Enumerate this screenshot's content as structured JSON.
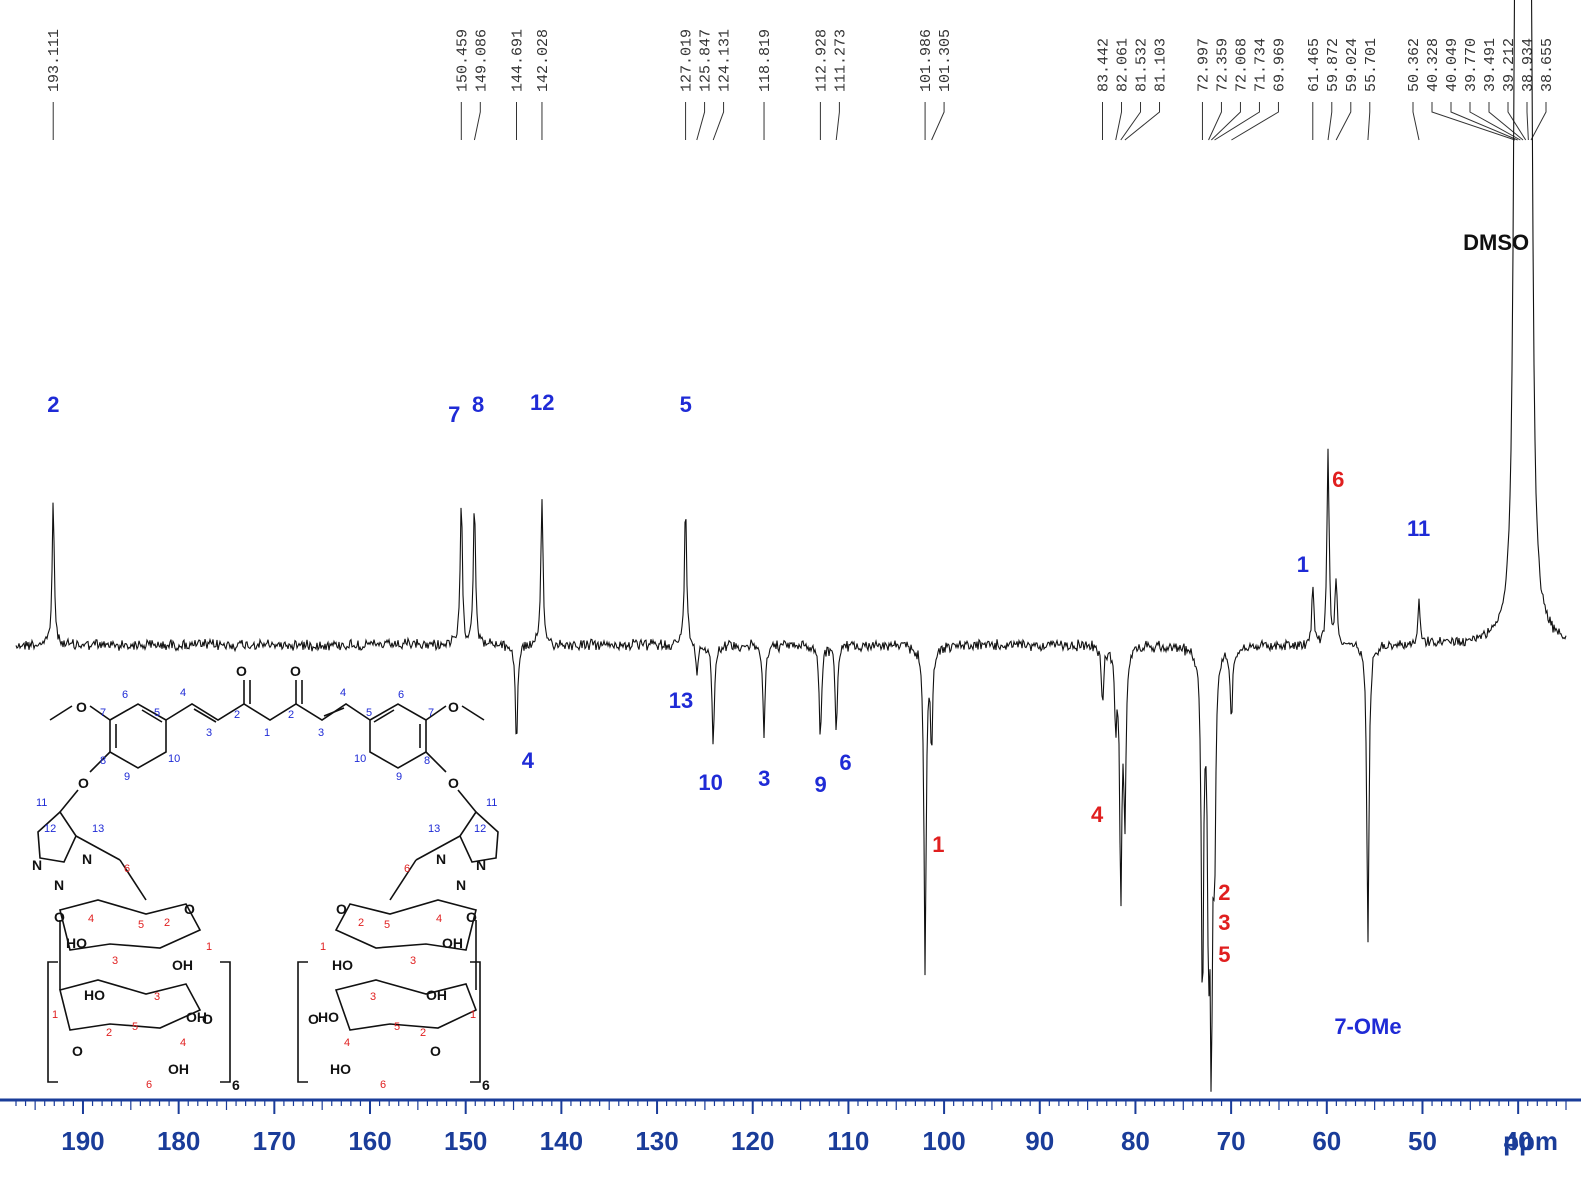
{
  "chart_data": {
    "type": "line",
    "title": "",
    "xlabel": "ppm",
    "ylabel": "",
    "xlim": [
      197,
      35
    ],
    "x_ticks": [
      190,
      180,
      170,
      160,
      150,
      140,
      130,
      120,
      110,
      100,
      90,
      80,
      70,
      60,
      50,
      40
    ],
    "x_tick_labels": [
      "190",
      "180",
      "170",
      "160",
      "150",
      "140",
      "130",
      "120",
      "110",
      "100",
      "90",
      "80",
      "70",
      "60",
      "50",
      "40"
    ],
    "axis_unit_label": "ppm",
    "peak_list": [
      "193.111",
      "150.459",
      "149.086",
      "144.691",
      "142.028",
      "127.019",
      "125.847",
      "124.131",
      "118.819",
      "112.928",
      "111.273",
      "101.986",
      "101.305",
      "83.442",
      "82.061",
      "81.532",
      "81.103",
      "72.997",
      "72.359",
      "72.068",
      "71.734",
      "69.969",
      "61.465",
      "59.872",
      "59.024",
      "55.701",
      "50.362",
      "40.328",
      "40.049",
      "39.770",
      "39.491",
      "39.212",
      "38.934",
      "38.655"
    ],
    "peaks": [
      {
        "ppm": 193.111,
        "intensity": 0.33
      },
      {
        "ppm": 150.459,
        "intensity": 0.33
      },
      {
        "ppm": 149.086,
        "intensity": 0.34
      },
      {
        "ppm": 144.691,
        "intensity": -0.21
      },
      {
        "ppm": 142.028,
        "intensity": 0.33
      },
      {
        "ppm": 127.019,
        "intensity": 0.33
      },
      {
        "ppm": 125.847,
        "intensity": -0.06
      },
      {
        "ppm": 124.131,
        "intensity": -0.21
      },
      {
        "ppm": 118.819,
        "intensity": -0.19
      },
      {
        "ppm": 112.928,
        "intensity": -0.2
      },
      {
        "ppm": 111.273,
        "intensity": -0.18
      },
      {
        "ppm": 101.986,
        "intensity": -0.67
      },
      {
        "ppm": 101.305,
        "intensity": -0.2
      },
      {
        "ppm": 83.442,
        "intensity": -0.12
      },
      {
        "ppm": 82.061,
        "intensity": -0.15
      },
      {
        "ppm": 81.532,
        "intensity": -0.5
      },
      {
        "ppm": 81.103,
        "intensity": -0.35
      },
      {
        "ppm": 72.997,
        "intensity": -0.73
      },
      {
        "ppm": 72.359,
        "intensity": -0.55
      },
      {
        "ppm": 72.068,
        "intensity": -0.78
      },
      {
        "ppm": 71.734,
        "intensity": -0.4
      },
      {
        "ppm": 69.969,
        "intensity": -0.15
      },
      {
        "ppm": 61.465,
        "intensity": 0.13
      },
      {
        "ppm": 59.872,
        "intensity": 0.45
      },
      {
        "ppm": 59.024,
        "intensity": 0.15
      },
      {
        "ppm": 55.701,
        "intensity": -0.62
      },
      {
        "ppm": 50.362,
        "intensity": 0.1
      },
      {
        "ppm": 40.328,
        "intensity": 1.0
      },
      {
        "ppm": 40.049,
        "intensity": 1.0
      },
      {
        "ppm": 39.77,
        "intensity": 1.0
      },
      {
        "ppm": 39.491,
        "intensity": 1.0
      },
      {
        "ppm": 39.212,
        "intensity": 1.0
      },
      {
        "ppm": 38.934,
        "intensity": 1.0
      },
      {
        "ppm": 38.655,
        "intensity": 1.0
      }
    ],
    "annotations": [
      {
        "text": "2",
        "ppm": 193.1,
        "color": "blue",
        "side": "up"
      },
      {
        "text": "7",
        "ppm": 151.2,
        "color": "blue",
        "side": "up"
      },
      {
        "text": "8",
        "ppm": 148.7,
        "color": "blue",
        "side": "up"
      },
      {
        "text": "12",
        "ppm": 142.0,
        "color": "blue",
        "side": "up"
      },
      {
        "text": "5",
        "ppm": 127.0,
        "color": "blue",
        "side": "up"
      },
      {
        "text": "4",
        "ppm": 143.5,
        "color": "blue",
        "side": "down"
      },
      {
        "text": "13",
        "ppm": 127.5,
        "color": "blue",
        "side": "down"
      },
      {
        "text": "10",
        "ppm": 124.4,
        "color": "blue",
        "side": "down"
      },
      {
        "text": "3",
        "ppm": 118.8,
        "color": "blue",
        "side": "down"
      },
      {
        "text": "9",
        "ppm": 112.9,
        "color": "blue",
        "side": "down"
      },
      {
        "text": "6",
        "ppm": 110.3,
        "color": "blue",
        "side": "down"
      },
      {
        "text": "1",
        "ppm": 100.6,
        "color": "red",
        "side": "down"
      },
      {
        "text": "4",
        "ppm": 84.0,
        "color": "red",
        "side": "down"
      },
      {
        "text": "2",
        "ppm": 70.7,
        "color": "red",
        "side": "down"
      },
      {
        "text": "3",
        "ppm": 70.7,
        "color": "red",
        "side": "down"
      },
      {
        "text": "5",
        "ppm": 70.7,
        "color": "red",
        "side": "down"
      },
      {
        "text": "6",
        "ppm": 58.8,
        "color": "red",
        "side": "up"
      },
      {
        "text": "1",
        "ppm": 62.5,
        "color": "blue",
        "side": "up"
      },
      {
        "text": "11",
        "ppm": 50.4,
        "color": "blue",
        "side": "up"
      },
      {
        "text": "DMSO",
        "ppm": 42.3,
        "color": "black",
        "side": "up"
      },
      {
        "text": "7-OMe",
        "ppm": 55.7,
        "color": "blue",
        "side": "down"
      }
    ]
  },
  "structure": {
    "atoms": {
      "oxygen": "O",
      "nitrogen": "N",
      "hydroxyl": "OH",
      "hydroxyl_left": "HO",
      "methoxy_o": "O"
    },
    "blue_numbers": [
      "1",
      "2",
      "3",
      "4",
      "5",
      "6",
      "7",
      "8",
      "9",
      "10",
      "11",
      "12",
      "13"
    ],
    "red_numbers": [
      "1",
      "2",
      "3",
      "4",
      "5",
      "6"
    ],
    "repeat_subscript": "6"
  },
  "colors": {
    "axis": "#1a3c99",
    "label_blue": "#1f2bd6",
    "label_red": "#e01f1f",
    "trace": "#111111"
  }
}
